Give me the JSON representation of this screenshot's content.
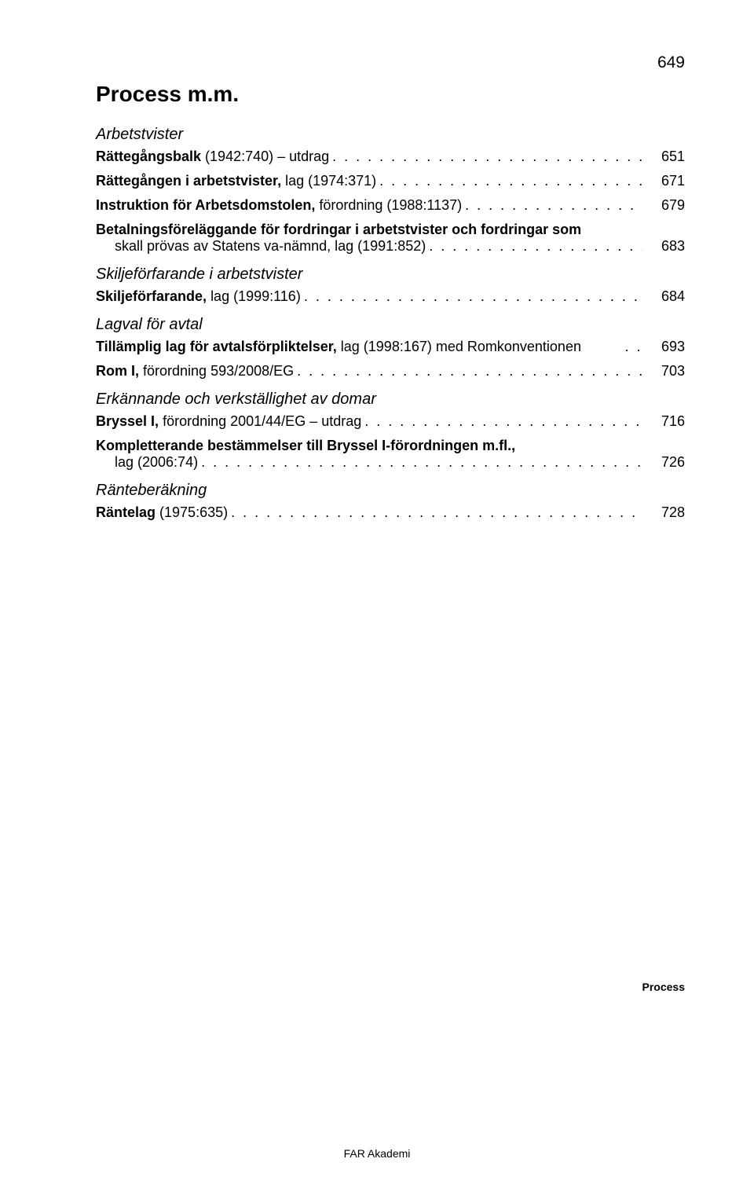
{
  "meta": {
    "top_page_number": "649",
    "side_label": "Process",
    "footer": "FAR Akademi"
  },
  "main_title": "Process m.m.",
  "sections": [
    {
      "heading": "Arbetstvister",
      "entries": [
        {
          "bold": "Rättegångsbalk ",
          "normal": "(1942:740) – utdrag",
          "page": "651"
        },
        {
          "bold": "Rättegången i arbetstvister, ",
          "normal": "lag (1974:371)",
          "page": "671"
        },
        {
          "bold": "Instruktion för Arbetsdomstolen, ",
          "normal": "förordning (1988:1137)",
          "page": "679"
        },
        {
          "bold": "Betalningsföreläggande för fordringar i arbetstvister och fordringar som",
          "line2_normal": "skall prövas av Statens va-nämnd, ",
          "line2_tail": "lag (1991:852)",
          "page": "683",
          "multiline": true
        }
      ]
    },
    {
      "heading": "Skiljeförfarande i arbetstvister",
      "entries": [
        {
          "bold": "Skiljeförfarande, ",
          "normal": "lag (1999:116)",
          "page": "684"
        }
      ]
    },
    {
      "heading": "Lagval för avtal",
      "entries": [
        {
          "bold": "Tillämplig lag för avtalsförpliktelser, ",
          "normal": "lag (1998:167) med Romkonventionen",
          "page": "693",
          "tight_dots": true
        },
        {
          "bold": "Rom I, ",
          "normal": "förordning 593/2008/EG",
          "page": "703"
        }
      ]
    },
    {
      "heading": "Erkännande och verkställighet av domar",
      "entries": [
        {
          "bold": "Bryssel I, ",
          "normal": "förordning 2001/44/EG – utdrag",
          "page": "716"
        },
        {
          "bold": "Kompletterande bestämmelser till Bryssel I-förordningen m.fl.,",
          "line2_normal": "lag (2006:74)",
          "line2_tail": "",
          "page": "726",
          "multiline": true
        }
      ]
    },
    {
      "heading": "Ränteberäkning",
      "entries": [
        {
          "bold": "Räntelag ",
          "normal": "(1975:635)",
          "page": "728"
        }
      ]
    }
  ]
}
